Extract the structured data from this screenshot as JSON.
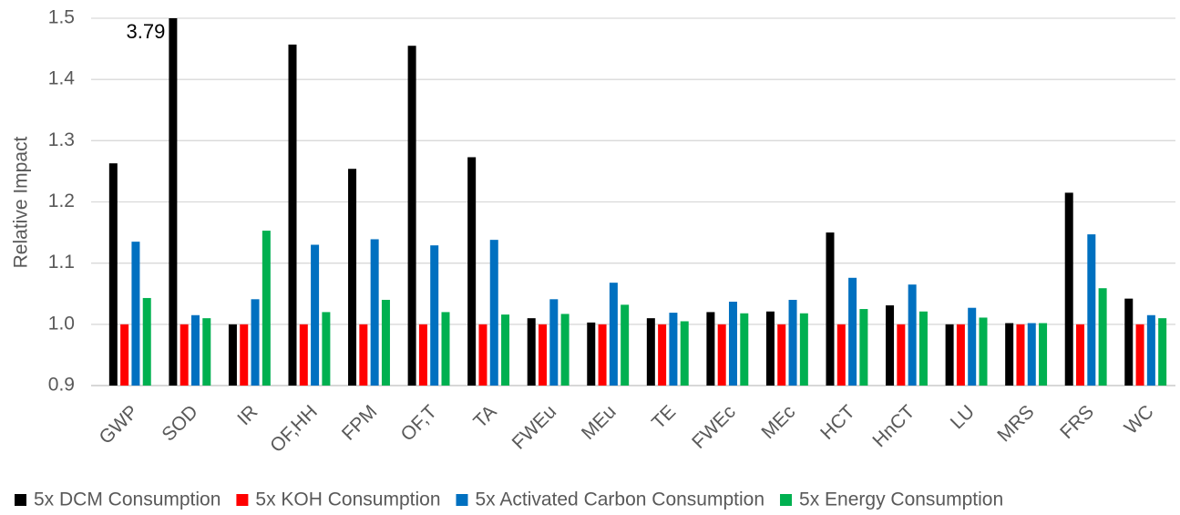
{
  "chart_data": {
    "type": "bar",
    "y_label": "Relative Impact",
    "categories": [
      "GWP",
      "SOD",
      "IR",
      "OF,HH",
      "FPM",
      "OF,T",
      "TA",
      "FWEu",
      "MEu",
      "TE",
      "FWEc",
      "MEc",
      "HCT",
      "HnCT",
      "LU",
      "MRS",
      "FRS",
      "WC"
    ],
    "series": [
      {
        "name": "5x DCM Consumption",
        "color": "#000000",
        "values": [
          1.263,
          3.79,
          1.0,
          1.457,
          1.254,
          1.455,
          1.273,
          1.01,
          1.003,
          1.01,
          1.02,
          1.021,
          1.15,
          1.031,
          1.0,
          1.002,
          1.215,
          1.042
        ],
        "value_labels": [
          null,
          "3.79",
          null,
          null,
          null,
          null,
          null,
          null,
          null,
          null,
          null,
          null,
          null,
          null,
          null,
          null,
          null,
          null
        ]
      },
      {
        "name": "5x KOH Consumption",
        "color": "#ff0000",
        "values": [
          1.0,
          1.0,
          1.0,
          1.0,
          1.0,
          1.0,
          1.0,
          1.0,
          1.0,
          1.0,
          1.0,
          1.0,
          1.0,
          1.0,
          1.0,
          1.0,
          1.0,
          1.0
        ]
      },
      {
        "name": "5x Activated Carbon Consumption",
        "color": "#0070c0",
        "values": [
          1.135,
          1.015,
          1.041,
          1.13,
          1.139,
          1.129,
          1.138,
          1.041,
          1.068,
          1.019,
          1.037,
          1.04,
          1.076,
          1.065,
          1.027,
          1.002,
          1.147,
          1.015
        ]
      },
      {
        "name": "5x Energy Consumption",
        "color": "#00b050",
        "values": [
          1.043,
          1.01,
          1.153,
          1.02,
          1.04,
          1.02,
          1.016,
          1.017,
          1.032,
          1.005,
          1.018,
          1.018,
          1.025,
          1.021,
          1.011,
          1.002,
          1.059,
          1.01
        ]
      }
    ],
    "ylim": [
      0.9,
      1.5
    ],
    "yticks": [
      0.9,
      {
        "value": 1.0,
        "label": "1.0"
      },
      1.1,
      1.2,
      1.3,
      1.4,
      1.5
    ],
    "grid": true,
    "legend": "bottom"
  }
}
